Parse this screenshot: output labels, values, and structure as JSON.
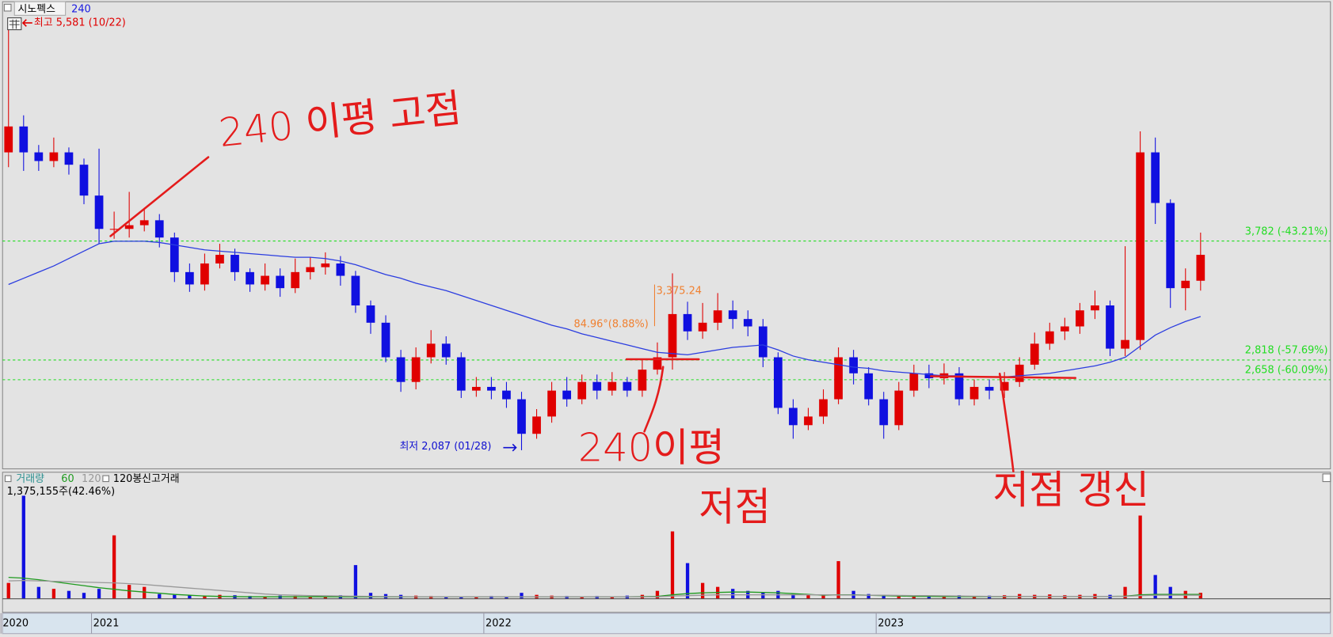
{
  "chart_data": [
    {
      "type": "candlestick",
      "title": "시노펙스",
      "up_color": "#e00000",
      "down_color": "#1010e0",
      "categories": [
        "2020",
        null,
        null,
        null,
        null,
        null,
        "2021",
        null,
        null,
        null,
        null,
        null,
        null,
        null,
        null,
        null,
        null,
        null,
        null,
        null,
        null,
        null,
        null,
        null,
        null,
        null,
        null,
        null,
        null,
        null,
        null,
        null,
        "2022",
        null,
        null,
        null,
        null,
        null,
        null,
        null,
        null,
        null,
        null,
        null,
        null,
        null,
        null,
        null,
        null,
        null,
        null,
        null,
        null,
        null,
        null,
        null,
        null,
        null,
        "2023",
        null,
        null,
        null,
        null,
        null,
        null,
        null,
        null,
        null,
        null,
        null,
        null,
        null,
        null,
        null,
        null,
        null,
        null,
        null,
        null,
        null
      ],
      "open": [
        4500,
        4710,
        4500,
        4430,
        4500,
        4400,
        4150,
        3880,
        3880,
        3910,
        3950,
        3810,
        3530,
        3430,
        3600,
        3670,
        3530,
        3430,
        3500,
        3400,
        3530,
        3570,
        3600,
        3500,
        3260,
        3120,
        2840,
        2640,
        2840,
        2950,
        2840,
        2570,
        2600,
        2570,
        2500,
        2220,
        2360,
        2570,
        2500,
        2640,
        2570,
        2640,
        2570,
        2740,
        2840,
        3190,
        3050,
        3120,
        3220,
        3150,
        3090,
        2840,
        2430,
        2290,
        2360,
        2500,
        2840,
        2710,
        2500,
        2290,
        2570,
        2710,
        2670,
        2710,
        2500,
        2600,
        2570,
        2640,
        2780,
        2950,
        3050,
        3090,
        3220,
        3260,
        2910,
        2980,
        4500,
        4090,
        3400,
        3460
      ],
      "close": [
        4710,
        4500,
        4430,
        4500,
        4400,
        4150,
        3880,
        3880,
        3910,
        3950,
        3810,
        3530,
        3430,
        3600,
        3670,
        3530,
        3430,
        3500,
        3400,
        3530,
        3570,
        3600,
        3500,
        3260,
        3120,
        2840,
        2640,
        2840,
        2950,
        2840,
        2570,
        2600,
        2570,
        2500,
        2220,
        2360,
        2570,
        2500,
        2640,
        2570,
        2640,
        2570,
        2740,
        2840,
        3190,
        3050,
        3120,
        3220,
        3150,
        3090,
        2840,
        2430,
        2290,
        2360,
        2500,
        2840,
        2710,
        2500,
        2290,
        2570,
        2710,
        2670,
        2710,
        2500,
        2600,
        2570,
        2640,
        2780,
        2950,
        3050,
        3090,
        3220,
        3260,
        2910,
        2980,
        4500,
        4090,
        3400,
        3460,
        3670
      ],
      "high": [
        5581,
        4800,
        4560,
        4620,
        4540,
        4450,
        4530,
        4020,
        4180,
        4050,
        4000,
        3850,
        3600,
        3680,
        3760,
        3720,
        3560,
        3600,
        3560,
        3640,
        3650,
        3690,
        3660,
        3540,
        3300,
        3180,
        2900,
        2920,
        3060,
        3010,
        2880,
        2680,
        2680,
        2640,
        2560,
        2420,
        2640,
        2680,
        2700,
        2700,
        2720,
        2680,
        2820,
        2960,
        3520,
        3290,
        3280,
        3360,
        3300,
        3220,
        3150,
        2880,
        2500,
        2430,
        2580,
        2920,
        2900,
        2760,
        2560,
        2640,
        2780,
        2780,
        2790,
        2760,
        2660,
        2660,
        2720,
        2840,
        3040,
        3120,
        3160,
        3280,
        3380,
        3300,
        3740,
        4670,
        4620,
        4120,
        3560,
        3850
      ],
      "low": [
        4380,
        4350,
        4350,
        4380,
        4320,
        4080,
        3760,
        3800,
        3810,
        3860,
        3730,
        3450,
        3370,
        3380,
        3560,
        3460,
        3370,
        3380,
        3330,
        3360,
        3470,
        3510,
        3420,
        3200,
        3030,
        2800,
        2560,
        2580,
        2790,
        2780,
        2510,
        2520,
        2500,
        2430,
        2087,
        2180,
        2310,
        2440,
        2460,
        2500,
        2530,
        2520,
        2520,
        2700,
        2740,
        2980,
        2990,
        3060,
        3070,
        3010,
        2760,
        2380,
        2180,
        2250,
        2300,
        2460,
        2620,
        2450,
        2180,
        2250,
        2520,
        2590,
        2620,
        2450,
        2450,
        2500,
        2510,
        2600,
        2740,
        2900,
        2980,
        3030,
        3150,
        2850,
        2850,
        2900,
        3920,
        3240,
        3220,
        3380
      ],
      "series": [
        {
          "name": "240",
          "color": "#2b3de0",
          "values": [
            3430,
            3480,
            3530,
            3580,
            3640,
            3700,
            3760,
            3780,
            3780,
            3780,
            3770,
            3750,
            3730,
            3710,
            3700,
            3690,
            3680,
            3670,
            3660,
            3650,
            3650,
            3640,
            3620,
            3590,
            3550,
            3510,
            3480,
            3440,
            3410,
            3380,
            3340,
            3300,
            3260,
            3220,
            3180,
            3140,
            3100,
            3070,
            3030,
            3000,
            2970,
            2940,
            2910,
            2880,
            2870,
            2860,
            2880,
            2900,
            2920,
            2930,
            2940,
            2900,
            2850,
            2820,
            2800,
            2780,
            2760,
            2750,
            2730,
            2720,
            2710,
            2700,
            2690,
            2690,
            2680,
            2680,
            2680,
            2690,
            2700,
            2710,
            2730,
            2750,
            2770,
            2800,
            2840,
            2930,
            3020,
            3080,
            3130,
            3170
          ]
        }
      ],
      "ylim": [
        1950,
        5700
      ],
      "levels": [
        {
          "value": 3782,
          "label": "3,782 (-43.21%)"
        },
        {
          "value": 2818,
          "label": "2,818 (-57.69%)"
        },
        {
          "value": 2658,
          "label": "2,658 (-60.09%)"
        }
      ],
      "level_color": "#22dd22",
      "annotations": [
        "최고 5,581 (10/22)",
        "최저 2,087 (01/28)",
        "3,375.24",
        "84.96°(8.88%)"
      ],
      "handwriting": [
        "240 이평 고점",
        "240이평",
        "저점",
        "저점 갱신"
      ]
    },
    {
      "type": "bar",
      "title": "거래량",
      "indicator": "120봉신고거래",
      "annotation": "1,375,155주(42.46%)",
      "values": [
        400000,
        2600000,
        300000,
        250000,
        200000,
        150000,
        250000,
        1600000,
        350000,
        300000,
        120000,
        100000,
        90000,
        80000,
        100000,
        90000,
        70000,
        60000,
        80000,
        70000,
        60000,
        70000,
        90000,
        850000,
        150000,
        120000,
        100000,
        80000,
        70000,
        60000,
        60000,
        50000,
        70000,
        60000,
        150000,
        100000,
        80000,
        70000,
        60000,
        70000,
        60000,
        80000,
        100000,
        200000,
        1700000,
        900000,
        400000,
        300000,
        250000,
        200000,
        150000,
        200000,
        120000,
        100000,
        90000,
        950000,
        200000,
        120000,
        100000,
        80000,
        90000,
        70000,
        80000,
        90000,
        70000,
        80000,
        90000,
        120000,
        100000,
        110000,
        90000,
        100000,
        120000,
        100000,
        300000,
        2100000,
        600000,
        300000,
        200000,
        150000
      ],
      "series": [
        {
          "name": "60",
          "color": "#1f9a1f",
          "values": [
            540000,
            520000,
            480000,
            430000,
            380000,
            330000,
            280000,
            240000,
            200000,
            170000,
            140000,
            110000,
            90000,
            70000,
            60000,
            55000,
            50000,
            50000,
            50000,
            50000,
            50000,
            50000,
            50000,
            50000,
            50000,
            50000,
            50000,
            50000,
            50000,
            50000,
            50000,
            50000,
            50000,
            50000,
            50000,
            50000,
            50000,
            50000,
            50000,
            50000,
            50000,
            50000,
            55000,
            60000,
            100000,
            130000,
            150000,
            160000,
            170000,
            170000,
            160000,
            150000,
            130000,
            110000,
            90000,
            100000,
            100000,
            90000,
            80000,
            70000,
            60000,
            60000,
            55000,
            55000,
            55000,
            55000,
            55000,
            60000,
            60000,
            60000,
            60000,
            60000,
            60000,
            60000,
            65000,
            100000,
            110000,
            110000,
            110000,
            110000
          ]
        },
        {
          "name": "120",
          "color": "#999999",
          "values": [
            450000,
            460000,
            450000,
            440000,
            430000,
            420000,
            410000,
            400000,
            380000,
            360000,
            330000,
            300000,
            270000,
            240000,
            210000,
            180000,
            150000,
            120000,
            100000,
            90000,
            80000,
            75000,
            70000,
            65000,
            60000,
            55000,
            55000,
            50000,
            50000,
            50000,
            50000,
            50000,
            50000,
            50000,
            50000,
            50000,
            50000,
            50000,
            50000,
            50000,
            50000,
            50000,
            50000,
            50000,
            70000,
            80000,
            90000,
            100000,
            100000,
            100000,
            100000,
            100000,
            100000,
            100000,
            100000,
            95000,
            95000,
            90000,
            90000,
            85000,
            80000,
            80000,
            75000,
            70000,
            65000,
            60000,
            60000,
            60000,
            60000,
            60000,
            60000,
            60000,
            60000,
            60000,
            60000,
            80000,
            90000,
            90000,
            90000,
            90000
          ]
        }
      ],
      "ylim": [
        0,
        3000000
      ]
    }
  ]
}
